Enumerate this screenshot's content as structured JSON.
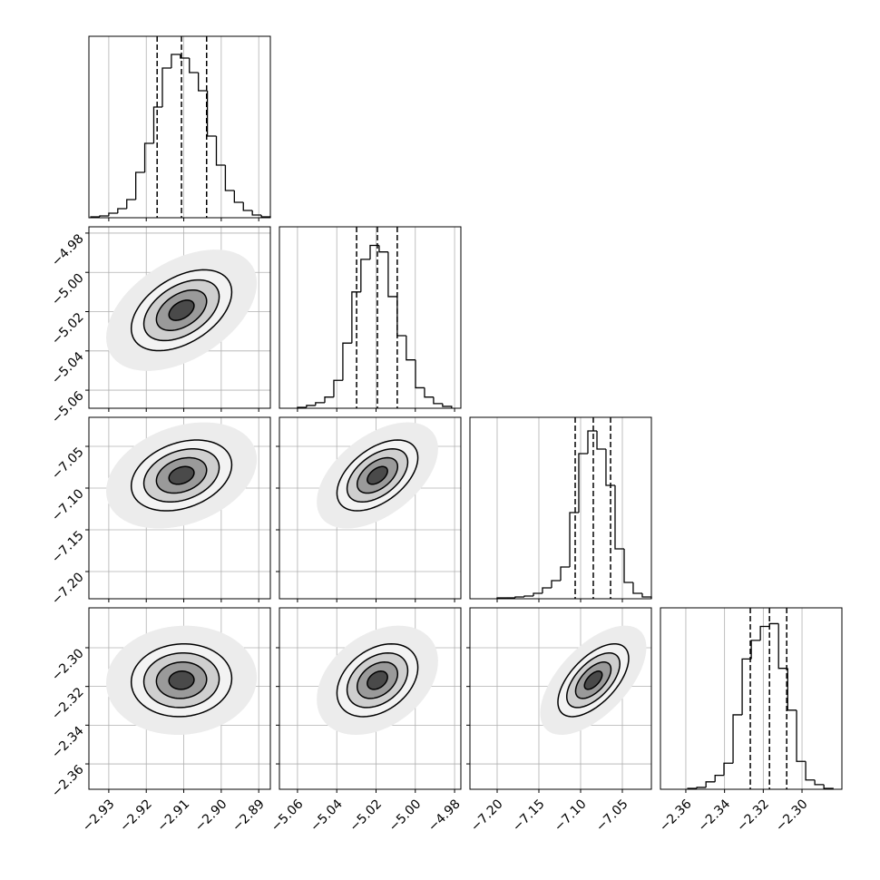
{
  "chart_data": {
    "type": "corner",
    "grid": true,
    "color": "#000000",
    "contour_sigmas": [
      0.5,
      1,
      1.5,
      2
    ],
    "params": [
      {
        "lim": [
          -2.9353,
          -2.8869
        ],
        "ticks": [
          {
            "value": -2.93,
            "label": "−2.93"
          },
          {
            "value": -2.92,
            "label": "−2.92"
          },
          {
            "value": -2.91,
            "label": "−2.91"
          },
          {
            "value": -2.9,
            "label": "−2.90"
          },
          {
            "value": -2.89,
            "label": "−2.89"
          }
        ],
        "mean": -2.9106,
        "std": 0.0067,
        "bins": [
          -2.9348,
          -2.9324,
          -2.93,
          -2.9276,
          -2.9252,
          -2.9228,
          -2.9204,
          -2.918,
          -2.9157,
          -2.9133,
          -2.9109,
          -2.9085,
          -2.9061,
          -2.9037,
          -2.9013,
          -2.8989,
          -2.8965,
          -2.8941,
          -2.8917,
          -2.8893,
          -2.8869
        ],
        "counts": [
          1,
          2,
          5,
          10,
          20,
          50,
          82,
          122,
          165,
          180,
          176,
          160,
          140,
          90,
          58,
          30,
          17,
          8,
          3,
          1
        ],
        "hist_ylim": [
          0,
          200
        ],
        "quantiles": [
          -2.9171,
          -2.9106,
          -2.9039
        ]
      },
      {
        "lim": [
          -5.0692,
          -4.9768
        ],
        "ticks": [
          {
            "value": -5.06,
            "label": "−5.06"
          },
          {
            "value": -5.04,
            "label": "−5.04"
          },
          {
            "value": -5.02,
            "label": "−5.02"
          },
          {
            "value": -5.0,
            "label": "−5.00"
          },
          {
            "value": -4.98,
            "label": "−4.98"
          }
        ],
        "mean": -5.0193,
        "std": 0.0103,
        "bins": [
          -5.06,
          -5.0554,
          -5.0508,
          -5.0461,
          -5.0415,
          -5.0369,
          -5.0323,
          -5.0277,
          -5.023,
          -5.0184,
          -5.0138,
          -5.0092,
          -5.0046,
          -4.9999,
          -4.9953,
          -4.9907,
          -4.9861,
          -4.9815
        ],
        "counts": [
          1,
          3,
          6,
          12,
          30,
          70,
          125,
          160,
          175,
          168,
          120,
          78,
          52,
          22,
          12,
          5,
          2
        ],
        "hist_ylim": [
          0,
          195
        ],
        "quantiles": [
          -5.0299,
          -5.0193,
          -5.0092
        ]
      },
      {
        "lim": [
          -7.2326,
          -7.0152
        ],
        "ticks": [
          {
            "value": -7.2,
            "label": "−7.20"
          },
          {
            "value": -7.15,
            "label": "−7.15"
          },
          {
            "value": -7.1,
            "label": "−7.10"
          },
          {
            "value": -7.05,
            "label": "−7.05"
          }
        ],
        "mean": -7.0848,
        "std": 0.0212,
        "bins": [
          -7.2,
          -7.1891,
          -7.1783,
          -7.1674,
          -7.1565,
          -7.1457,
          -7.1348,
          -7.1239,
          -7.113,
          -7.1022,
          -7.0913,
          -7.0804,
          -7.0696,
          -7.0587,
          -7.0478,
          -7.037,
          -7.0261,
          -7.0152
        ],
        "counts": [
          1,
          1,
          2,
          3,
          6,
          12,
          20,
          35,
          95,
          160,
          185,
          165,
          125,
          55,
          18,
          6,
          2
        ],
        "hist_ylim": [
          0,
          200
        ],
        "quantiles": [
          -7.1065,
          -7.0848,
          -7.0641
        ]
      },
      {
        "lim": [
          -2.3731,
          -2.2794
        ],
        "ticks": [
          {
            "value": -2.36,
            "label": "−2.36"
          },
          {
            "value": -2.34,
            "label": "−2.34"
          },
          {
            "value": -2.32,
            "label": "−2.32"
          },
          {
            "value": -2.3,
            "label": "−2.30"
          }
        ],
        "mean": -2.3168,
        "std": 0.0094,
        "bins": [
          -2.359,
          -2.3543,
          -2.3496,
          -2.3449,
          -2.3403,
          -2.3356,
          -2.3309,
          -2.3262,
          -2.3215,
          -2.3168,
          -2.3121,
          -2.3074,
          -2.3028,
          -2.2981,
          -2.2934,
          -2.2887,
          -2.284
        ],
        "counts": [
          1,
          2,
          8,
          15,
          28,
          80,
          140,
          160,
          175,
          178,
          130,
          85,
          30,
          10,
          5,
          1
        ],
        "hist_ylim": [
          0,
          195
        ],
        "quantiles": [
          -2.3267,
          -2.3168,
          -2.3079
        ]
      }
    ],
    "correlations": [
      {
        "pair": [
          0,
          1
        ],
        "rho": 0.45
      },
      {
        "pair": [
          0,
          2
        ],
        "rho": 0.3
      },
      {
        "pair": [
          1,
          2
        ],
        "rho": 0.5
      },
      {
        "pair": [
          0,
          3
        ],
        "rho": 0.05
      },
      {
        "pair": [
          1,
          3
        ],
        "rho": 0.35
      },
      {
        "pair": [
          2,
          3
        ],
        "rho": 0.6
      }
    ]
  }
}
